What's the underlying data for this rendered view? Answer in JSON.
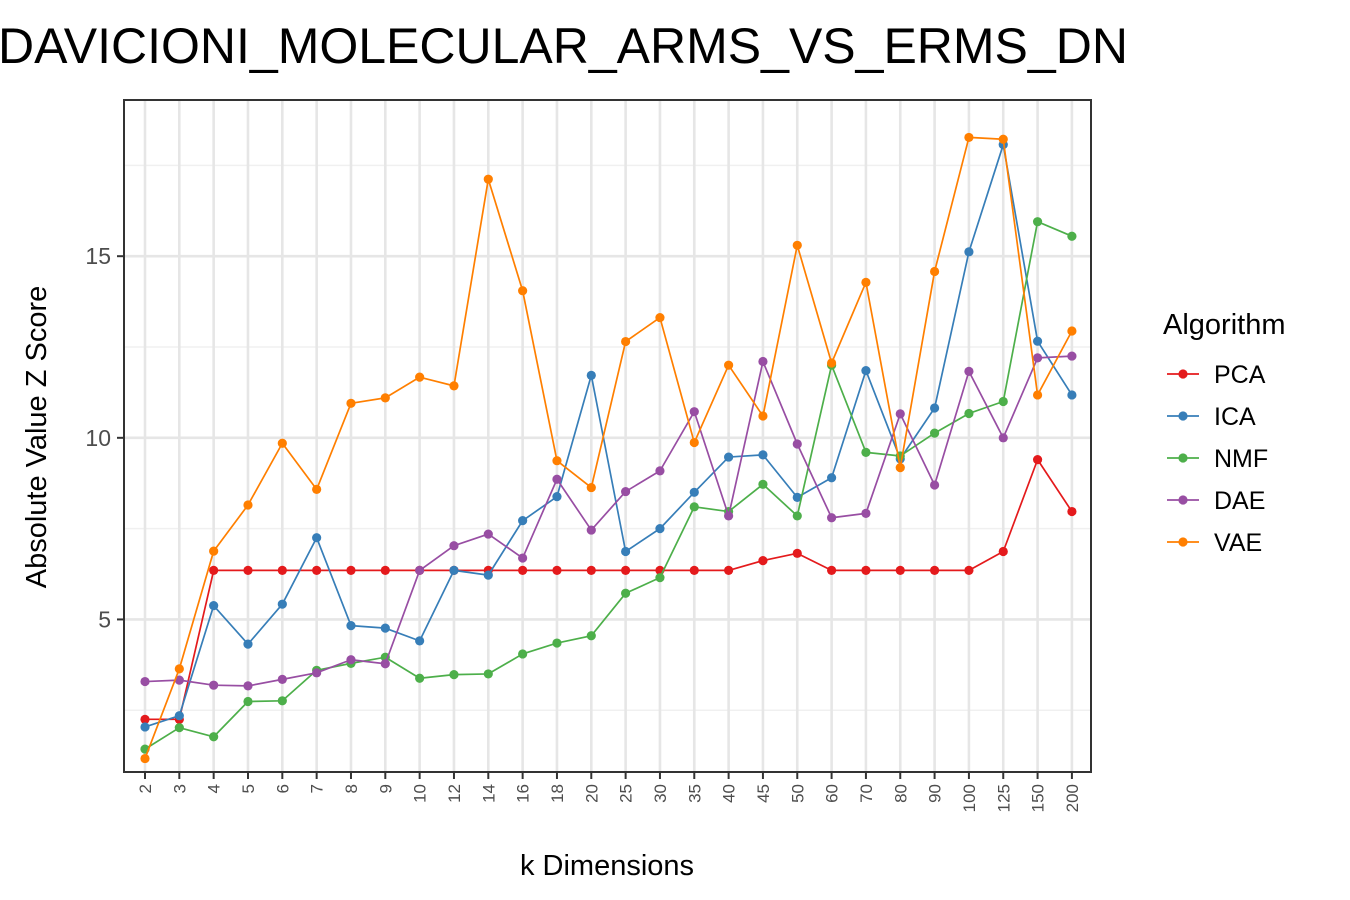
{
  "chart_data": {
    "type": "line",
    "title": "DAVICIONI_MOLECULAR_ARMS_VS_ERMS_DN",
    "xlabel": "k Dimensions",
    "ylabel": "Absolute Value Z Score",
    "categories": [
      "2",
      "3",
      "4",
      "5",
      "6",
      "7",
      "8",
      "9",
      "10",
      "12",
      "14",
      "16",
      "18",
      "20",
      "25",
      "30",
      "35",
      "40",
      "45",
      "50",
      "60",
      "70",
      "80",
      "90",
      "100",
      "125",
      "150",
      "200"
    ],
    "ylim": [
      0.8,
      19.3
    ],
    "yticks": [
      5,
      10,
      15
    ],
    "grid": true,
    "legend_title": "Algorithm",
    "legend_position": "right",
    "series": [
      {
        "name": "PCA",
        "color": "#e41a1c",
        "values": [
          2.25,
          2.25,
          6.35,
          6.35,
          6.35,
          6.35,
          6.35,
          6.35,
          6.35,
          6.35,
          6.35,
          6.35,
          6.35,
          6.35,
          6.35,
          6.35,
          6.35,
          6.35,
          6.62,
          6.82,
          6.35,
          6.35,
          6.35,
          6.35,
          6.35,
          6.87,
          9.4,
          7.97
        ]
      },
      {
        "name": "ICA",
        "color": "#377eb8",
        "values": [
          2.04,
          2.35,
          5.38,
          4.32,
          5.42,
          7.25,
          4.83,
          4.76,
          4.41,
          6.35,
          6.22,
          7.72,
          8.38,
          11.72,
          6.87,
          7.5,
          8.5,
          9.47,
          9.53,
          8.36,
          8.9,
          11.85,
          9.42,
          10.82,
          15.12,
          18.07,
          12.66,
          11.18
        ]
      },
      {
        "name": "NMF",
        "color": "#4daf4a",
        "values": [
          1.43,
          2.02,
          1.77,
          2.74,
          2.76,
          3.6,
          3.79,
          3.96,
          3.38,
          3.48,
          3.5,
          4.05,
          4.35,
          4.55,
          5.72,
          6.15,
          8.1,
          7.97,
          8.72,
          7.85,
          12.0,
          9.6,
          9.5,
          10.13,
          10.67,
          11.0,
          15.95,
          15.55
        ]
      },
      {
        "name": "DAE",
        "color": "#984ea3",
        "values": [
          3.29,
          3.33,
          3.19,
          3.17,
          3.35,
          3.53,
          3.89,
          3.78,
          6.35,
          7.03,
          7.35,
          6.69,
          8.86,
          7.46,
          8.52,
          9.09,
          10.72,
          7.85,
          12.1,
          9.83,
          7.8,
          7.92,
          10.66,
          8.7,
          11.83,
          10.0,
          12.2,
          12.25
        ]
      },
      {
        "name": "VAE",
        "color": "#ff7f00",
        "values": [
          1.17,
          3.64,
          6.88,
          8.15,
          9.85,
          8.58,
          10.95,
          11.1,
          11.67,
          11.43,
          17.12,
          14.05,
          9.37,
          8.63,
          12.65,
          13.31,
          9.87,
          12.0,
          10.6,
          15.3,
          12.06,
          14.28,
          9.18,
          14.58,
          18.27,
          18.22,
          11.18,
          12.94
        ]
      }
    ]
  }
}
